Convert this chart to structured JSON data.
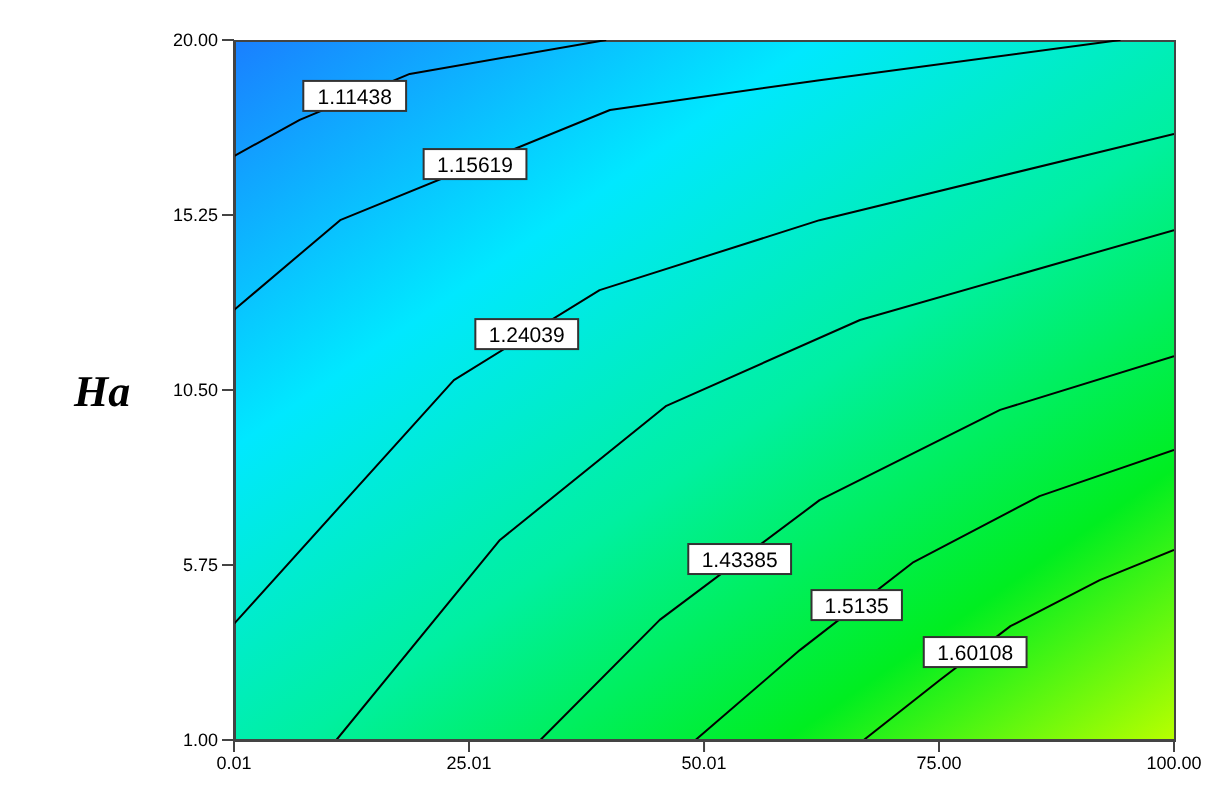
{
  "chart_data": {
    "type": "line",
    "ylabel": "Ha",
    "xlim": [
      0.01,
      100
    ],
    "xticks": [
      0.01,
      25.01,
      50.01,
      {
        "value": 75,
        "label": "75.00"
      },
      {
        "value": 100,
        "label": "100.00"
      }
    ],
    "ylim": [
      1,
      20
    ],
    "yticks": [
      {
        "value": 1,
        "label": "1.00"
      },
      {
        "value": 5.75,
        "label": "5.75"
      },
      {
        "value": 10.5,
        "label": "10.50"
      },
      {
        "value": 15.25,
        "label": "15.25"
      },
      {
        "value": 20,
        "label": "20.00"
      }
    ],
    "marker": "none",
    "series": [
      {
        "name": "1.11438",
        "color": "#000000",
        "x": [
          0.01,
          7.0,
          18.7,
          39.6
        ],
        "values": [
          16.85,
          17.83,
          19.08,
          20
        ]
      },
      {
        "name": "1.15619",
        "color": "#000000",
        "x": [
          0.01,
          11.3,
          40.0,
          62.3,
          94.3
        ],
        "values": [
          12.67,
          15.11,
          18.1,
          18.91,
          20
        ]
      },
      {
        "name": "1.24039",
        "color": "#000000",
        "x": [
          0.01,
          23.4,
          38.9,
          62.3,
          100
        ],
        "values": [
          4.15,
          10.77,
          13.21,
          15.11,
          17.45
        ]
      },
      {
        "color": "#000000",
        "x": [
          10.9,
          28.3,
          46.0,
          66.6,
          100
        ],
        "values": [
          1,
          6.43,
          10.07,
          12.4,
          14.84
        ]
      },
      {
        "name": "1.43385",
        "color": "#000000",
        "x": [
          32.6,
          45.3,
          62.3,
          81.5,
          100
        ],
        "values": [
          1,
          4.26,
          7.51,
          9.96,
          11.42
        ]
      },
      {
        "name": "1.5135",
        "color": "#000000",
        "x": [
          49.1,
          60.2,
          72.3,
          85.7,
          100
        ],
        "values": [
          1,
          3.44,
          5.83,
          7.62,
          8.87
        ]
      },
      {
        "name": "1.60108",
        "color": "#000000",
        "x": [
          67.0,
          75.1,
          82.6,
          92.1,
          100
        ],
        "values": [
          1,
          2.63,
          4.09,
          5.34,
          6.16
        ]
      }
    ]
  }
}
